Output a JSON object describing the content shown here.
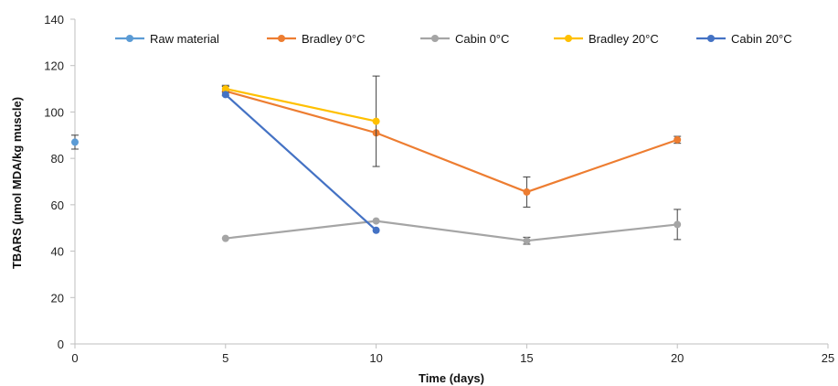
{
  "chart_data": {
    "type": "line",
    "xlabel": "Time (days)",
    "ylabel": "TBARS (µmol MDA/kg muscle)",
    "xlim": [
      0,
      25
    ],
    "ylim": [
      0,
      140
    ],
    "xticks": [
      "0",
      "5",
      "10",
      "15",
      "20",
      "25"
    ],
    "yticks": [
      "0",
      "20",
      "40",
      "60",
      "80",
      "100",
      "120",
      "140"
    ],
    "grid": false,
    "legend": "top",
    "series": [
      {
        "name": "Raw material",
        "color": "#5b9bd5",
        "points": [
          {
            "x": 0,
            "y": 87,
            "err": 3
          }
        ]
      },
      {
        "name": "Bradley 0°C",
        "color": "#ed7d31",
        "points": [
          {
            "x": 5,
            "y": 109,
            "err": 2
          },
          {
            "x": 10,
            "y": 91,
            "err": 0
          },
          {
            "x": 15,
            "y": 65.5,
            "err": 6.5
          },
          {
            "x": 20,
            "y": 88,
            "err": 1.5
          }
        ]
      },
      {
        "name": "Cabin 0°C",
        "color": "#a5a5a5",
        "points": [
          {
            "x": 5,
            "y": 45.5,
            "err": 0
          },
          {
            "x": 10,
            "y": 53,
            "err": 0
          },
          {
            "x": 15,
            "y": 44.5,
            "err": 1.5
          },
          {
            "x": 20,
            "y": 51.5,
            "err": 6.5
          }
        ]
      },
      {
        "name": "Bradley 20°C",
        "color": "#ffc000",
        "points": [
          {
            "x": 5,
            "y": 110,
            "err": 1.5
          },
          {
            "x": 10,
            "y": 96,
            "err": 19.5
          }
        ]
      },
      {
        "name": "Cabin 20°C",
        "color": "#4472c4",
        "points": [
          {
            "x": 5,
            "y": 107.5,
            "err": 0
          },
          {
            "x": 10,
            "y": 49,
            "err": 0
          }
        ]
      }
    ]
  }
}
